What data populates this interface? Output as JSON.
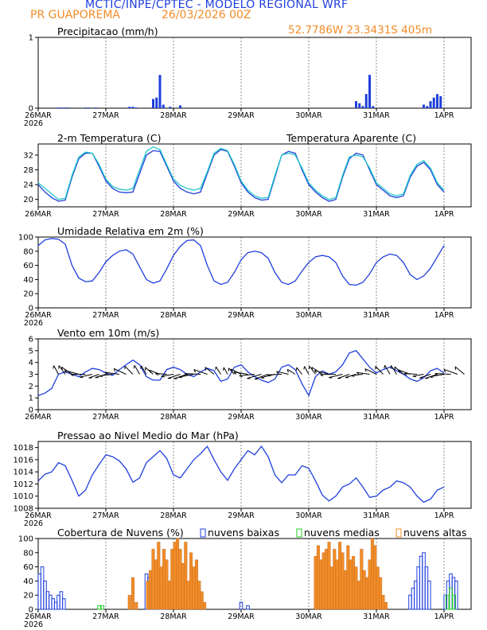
{
  "header": {
    "title": "MCTIC/INPE/CPTEC - MODELO REGIONAL WRF",
    "location": "PR GUAPOREMA",
    "date": "26/03/2026 00Z",
    "coords": "52.7786W 23.3431S 405m"
  },
  "colors": {
    "blue": "#1f3fdc",
    "cyan": "#20c8c8",
    "orange": "#f28c28",
    "green": "#22cc22",
    "black": "#000000",
    "header_blue": "#1f3fdc",
    "header_orange": "#f28c28"
  },
  "xaxis": {
    "labels": [
      "26MAR",
      "27MAR",
      "28MAR",
      "29MAR",
      "30MAR",
      "31MAR",
      "1APR"
    ],
    "year": "2026"
  },
  "chart_data": [
    {
      "type": "bar",
      "id": "precip",
      "title": "Precipitacao (mm/h)",
      "ylim": [
        0,
        1
      ],
      "yticks": [
        "0",
        "1"
      ],
      "x": [
        0.3,
        0.35,
        0.4,
        0.45,
        0.7,
        0.75,
        0.85,
        1.35,
        1.4,
        1.45,
        1.7,
        1.75,
        1.8,
        1.85,
        1.95,
        2.1,
        4.7,
        4.75,
        4.8,
        4.85,
        4.9,
        4.95,
        5.7,
        5.75,
        5.8,
        5.85,
        5.9,
        5.95
      ],
      "values": [
        0.01,
        0.01,
        0.01,
        0.01,
        0.01,
        0.01,
        0.01,
        0.02,
        0.02,
        0.01,
        0.13,
        0.15,
        0.47,
        0.05,
        0.02,
        0.04,
        0.1,
        0.07,
        0.03,
        0.2,
        0.47,
        0.03,
        0.05,
        0.03,
        0.1,
        0.15,
        0.2,
        0.17
      ]
    },
    {
      "type": "line",
      "id": "temp",
      "title": "2-m Temperatura (C)",
      "legend": "Temperatura Aparente (C)",
      "ylim": [
        18,
        35
      ],
      "yticks": [
        "20",
        "24",
        "28",
        "32"
      ],
      "series": [
        {
          "name": "Temperatura",
          "color": "#1f3fdc",
          "x": [
            0,
            0.1,
            0.2,
            0.3,
            0.4,
            0.5,
            0.6,
            0.7,
            0.8,
            0.9,
            1.0,
            1.1,
            1.2,
            1.3,
            1.4,
            1.5,
            1.6,
            1.7,
            1.8,
            1.9,
            2.0,
            2.1,
            2.2,
            2.3,
            2.4,
            2.5,
            2.6,
            2.7,
            2.8,
            2.9,
            3.0,
            3.1,
            3.2,
            3.3,
            3.4,
            3.5,
            3.6,
            3.7,
            3.8,
            3.9,
            4.0,
            4.1,
            4.2,
            4.3,
            4.4,
            4.5,
            4.6,
            4.7,
            4.8,
            4.9,
            5.0,
            5.1,
            5.2,
            5.3,
            5.4,
            5.5,
            5.6,
            5.7,
            5.8,
            5.9,
            6.0
          ],
          "values": [
            24,
            22,
            20.5,
            19.5,
            19.8,
            26,
            31,
            32.5,
            32.5,
            29,
            25,
            23,
            22,
            21.8,
            22,
            27,
            32,
            33.2,
            33,
            29,
            25,
            23,
            22,
            21.5,
            22,
            27,
            32,
            33.5,
            33,
            29,
            24.5,
            22,
            20.5,
            19.8,
            20,
            26,
            32,
            33,
            32.5,
            28,
            24,
            22,
            20.5,
            19.5,
            20,
            26,
            31,
            32.5,
            32,
            28,
            24,
            22.5,
            21,
            20.5,
            21,
            26,
            29,
            30,
            28,
            24,
            22
          ]
        },
        {
          "name": "Temperatura Aparente",
          "color": "#20c8c8",
          "x": [
            0,
            0.1,
            0.2,
            0.3,
            0.4,
            0.5,
            0.6,
            0.7,
            0.8,
            0.9,
            1.0,
            1.1,
            1.2,
            1.3,
            1.4,
            1.5,
            1.6,
            1.7,
            1.8,
            1.9,
            2.0,
            2.1,
            2.2,
            2.3,
            2.4,
            2.5,
            2.6,
            2.7,
            2.8,
            2.9,
            3.0,
            3.1,
            3.2,
            3.3,
            3.4,
            3.5,
            3.6,
            3.7,
            3.8,
            3.9,
            4.0,
            4.1,
            4.2,
            4.3,
            4.4,
            4.5,
            4.6,
            4.7,
            4.8,
            4.9,
            5.0,
            5.1,
            5.2,
            5.3,
            5.4,
            5.5,
            5.6,
            5.7,
            5.8,
            5.9,
            6.0
          ],
          "values": [
            24.5,
            23,
            21.5,
            20,
            20.3,
            26.5,
            31.5,
            32.8,
            32.5,
            29.5,
            25.5,
            23.5,
            22.8,
            22.5,
            23,
            28,
            33,
            34.2,
            33.5,
            29.5,
            25.5,
            23.8,
            23,
            22.5,
            23,
            27.5,
            32.5,
            33.8,
            33.2,
            29.5,
            25,
            22.5,
            21,
            20.3,
            20.5,
            26.5,
            32,
            32.5,
            32,
            28.5,
            24.5,
            22.5,
            21,
            20,
            20.5,
            26.5,
            31.5,
            32,
            31.5,
            28.5,
            24.5,
            23,
            21.5,
            21,
            21.5,
            26.5,
            29.5,
            30.5,
            28.5,
            24.5,
            22.5
          ]
        }
      ]
    },
    {
      "type": "line",
      "id": "rh",
      "title": "Umidade Relativa em 2m (%)",
      "ylim": [
        0,
        100
      ],
      "yticks": [
        "0",
        "20",
        "40",
        "60",
        "80",
        "100"
      ],
      "series": [
        {
          "name": "UR",
          "color": "#1f3fdc",
          "x": [
            0,
            0.1,
            0.2,
            0.3,
            0.4,
            0.5,
            0.6,
            0.7,
            0.8,
            0.9,
            1.0,
            1.1,
            1.2,
            1.3,
            1.4,
            1.5,
            1.6,
            1.7,
            1.8,
            1.9,
            2.0,
            2.1,
            2.2,
            2.3,
            2.4,
            2.5,
            2.6,
            2.7,
            2.8,
            2.9,
            3.0,
            3.1,
            3.2,
            3.3,
            3.4,
            3.5,
            3.6,
            3.7,
            3.8,
            3.9,
            4.0,
            4.1,
            4.2,
            4.3,
            4.4,
            4.5,
            4.6,
            4.7,
            4.8,
            4.9,
            5.0,
            5.1,
            5.2,
            5.3,
            5.4,
            5.5,
            5.6,
            5.7,
            5.8,
            5.9,
            6.0
          ],
          "values": [
            88,
            96,
            98,
            97,
            90,
            60,
            42,
            37,
            38,
            50,
            65,
            74,
            80,
            82,
            76,
            58,
            40,
            35,
            38,
            55,
            74,
            87,
            95,
            96,
            88,
            60,
            38,
            33,
            36,
            50,
            68,
            78,
            80,
            78,
            70,
            50,
            36,
            33,
            38,
            52,
            64,
            72,
            74,
            72,
            64,
            45,
            33,
            32,
            36,
            48,
            64,
            72,
            76,
            74,
            64,
            47,
            40,
            45,
            56,
            72,
            88
          ]
        }
      ]
    },
    {
      "type": "line",
      "id": "wind",
      "title": "Vento em 10m (m/s)",
      "ylim": [
        0,
        6
      ],
      "yticks": [
        "0",
        "1",
        "2",
        "3",
        "4",
        "5",
        "6"
      ],
      "series": [
        {
          "name": "Vento",
          "color": "#1f3fdc",
          "x": [
            0,
            0.1,
            0.2,
            0.3,
            0.4,
            0.5,
            0.6,
            0.7,
            0.8,
            0.9,
            1.0,
            1.1,
            1.2,
            1.3,
            1.4,
            1.5,
            1.6,
            1.7,
            1.8,
            1.9,
            2.0,
            2.1,
            2.2,
            2.3,
            2.4,
            2.5,
            2.6,
            2.7,
            2.8,
            2.9,
            3.0,
            3.1,
            3.2,
            3.3,
            3.4,
            3.5,
            3.6,
            3.7,
            3.8,
            3.9,
            4.0,
            4.1,
            4.2,
            4.3,
            4.4,
            4.5,
            4.6,
            4.7,
            4.8,
            4.9,
            5.0,
            5.1,
            5.2,
            5.3,
            5.4,
            5.5,
            5.6,
            5.7,
            5.8,
            5.9,
            6.0
          ],
          "values": [
            1.2,
            1.4,
            1.8,
            3.0,
            3.2,
            3.0,
            2.8,
            3.2,
            3.5,
            3.4,
            3.1,
            2.9,
            3.4,
            3.8,
            4.2,
            3.8,
            2.8,
            2.5,
            2.5,
            3.4,
            3.6,
            3.4,
            3.0,
            2.8,
            3.2,
            3.5,
            3.3,
            2.4,
            2.6,
            3.6,
            3.8,
            3.2,
            2.8,
            2.5,
            2.3,
            2.6,
            3.6,
            3.8,
            3.4,
            2.2,
            1.2,
            2.8,
            3.3,
            3.0,
            3.2,
            3.8,
            4.8,
            5.0,
            4.3,
            3.6,
            3.1,
            3.4,
            3.6,
            3.3,
            3.0,
            2.6,
            2.4,
            2.7,
            3.3,
            3.5,
            3.1
          ]
        }
      ]
    },
    {
      "type": "line",
      "id": "pressure",
      "title": "Pressao ao Nivel Medio do Mar (hPa)",
      "ylim": [
        1008,
        1019
      ],
      "yticks": [
        "1008",
        "1010",
        "1012",
        "1014",
        "1016",
        "1018"
      ],
      "series": [
        {
          "name": "Pressao",
          "color": "#1f3fdc",
          "x": [
            0,
            0.1,
            0.2,
            0.3,
            0.4,
            0.5,
            0.6,
            0.7,
            0.8,
            0.9,
            1.0,
            1.1,
            1.2,
            1.3,
            1.4,
            1.5,
            1.6,
            1.7,
            1.8,
            1.9,
            2.0,
            2.1,
            2.2,
            2.3,
            2.4,
            2.5,
            2.6,
            2.7,
            2.8,
            2.9,
            3.0,
            3.1,
            3.2,
            3.3,
            3.4,
            3.5,
            3.6,
            3.7,
            3.8,
            3.9,
            4.0,
            4.1,
            4.2,
            4.3,
            4.4,
            4.5,
            4.6,
            4.7,
            4.8,
            4.9,
            5.0,
            5.1,
            5.2,
            5.3,
            5.4,
            5.5,
            5.6,
            5.7,
            5.8,
            5.9,
            6.0
          ],
          "values": [
            1012.5,
            1013.6,
            1014,
            1015.5,
            1015,
            1012.6,
            1010,
            1011,
            1013.5,
            1015.2,
            1016.8,
            1016.5,
            1015.8,
            1014.5,
            1012.3,
            1013,
            1015.5,
            1016.5,
            1017.5,
            1016.2,
            1013.5,
            1013,
            1014.5,
            1016,
            1017,
            1018.2,
            1016,
            1014,
            1012.6,
            1014.5,
            1016,
            1017.5,
            1016.8,
            1018.2,
            1016.5,
            1013.5,
            1012.2,
            1013.5,
            1013.5,
            1015,
            1014.6,
            1012.5,
            1010.2,
            1009.2,
            1010,
            1011.5,
            1012,
            1013,
            1011.5,
            1009.8,
            1010,
            1011,
            1011.5,
            1012.5,
            1012.2,
            1011.5,
            1010,
            1009,
            1009.5,
            1011,
            1011.5
          ]
        }
      ]
    },
    {
      "type": "bar",
      "id": "clouds",
      "title": "Cobertura de Nuvens (%)",
      "legend": [
        "nuvens baixas",
        "nuvens medias",
        "nuvens altas"
      ],
      "ylim": [
        0,
        100
      ],
      "yticks": [
        "0",
        "20",
        "40",
        "60",
        "80",
        "100"
      ],
      "series": [
        {
          "name": "nuvens baixas",
          "color": "#1f3fdc",
          "x": [
            0.02,
            0.06,
            0.1,
            0.14,
            0.18,
            0.22,
            0.26,
            0.3,
            0.34,
            0.38,
            1.6,
            1.64,
            1.68,
            1.72,
            1.76,
            1.8,
            1.84,
            1.88,
            3.0,
            3.1,
            5.5,
            5.54,
            5.58,
            5.62,
            5.66,
            5.7,
            5.74,
            5.78,
            6.02,
            6.06,
            6.1,
            6.14,
            6.18
          ],
          "values": [
            50,
            60,
            40,
            25,
            20,
            15,
            10,
            20,
            25,
            15,
            50,
            45,
            40,
            30,
            20,
            15,
            10,
            5,
            10,
            5,
            20,
            30,
            40,
            60,
            75,
            80,
            60,
            40,
            20,
            40,
            50,
            45,
            40
          ]
        },
        {
          "name": "nuvens medias",
          "color": "#22cc22",
          "x": [
            0.9,
            0.95,
            6.05,
            6.1,
            6.15
          ],
          "values": [
            5,
            5,
            20,
            30,
            20
          ]
        },
        {
          "name": "nuvens altas",
          "color": "#f28c28",
          "x": [
            1.35,
            1.4,
            1.45,
            1.62,
            1.66,
            1.7,
            1.74,
            1.78,
            1.82,
            1.86,
            1.9,
            1.94,
            1.98,
            2.02,
            2.06,
            2.1,
            2.14,
            2.18,
            2.22,
            2.26,
            2.3,
            2.34,
            2.38,
            2.42,
            2.46,
            4.1,
            4.14,
            4.18,
            4.22,
            4.26,
            4.3,
            4.34,
            4.38,
            4.42,
            4.46,
            4.5,
            4.54,
            4.58,
            4.62,
            4.66,
            4.7,
            4.74,
            4.78,
            4.82,
            4.86,
            4.9,
            4.94,
            4.98,
            5.02,
            5.06,
            5.1,
            5.14
          ],
          "values": [
            20,
            45,
            10,
            40,
            55,
            85,
            70,
            95,
            60,
            85,
            70,
            40,
            85,
            95,
            100,
            85,
            65,
            95,
            40,
            80,
            60,
            70,
            40,
            25,
            10,
            75,
            90,
            70,
            80,
            85,
            95,
            60,
            85,
            70,
            95,
            80,
            55,
            90,
            70,
            75,
            60,
            40,
            85,
            55,
            45,
            70,
            100,
            90,
            60,
            45,
            20,
            10
          ]
        }
      ]
    }
  ]
}
